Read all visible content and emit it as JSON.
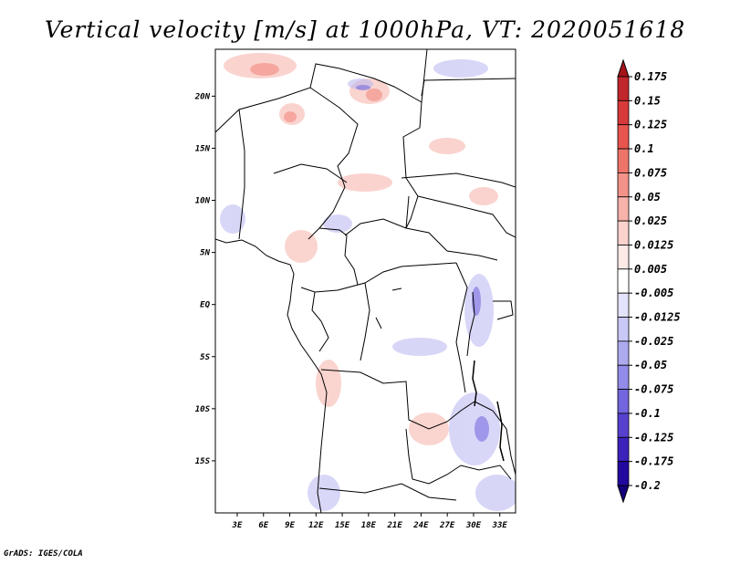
{
  "title": "Vertical velocity [m/s] at 1000hPa, VT: 2020051618",
  "credit": "GrADS: IGES/COLA",
  "map": {
    "lat_labels": [
      "20N",
      "15N",
      "10N",
      "5N",
      "EQ",
      "5S",
      "10S",
      "15S"
    ],
    "lat_values": [
      20,
      15,
      10,
      5,
      0,
      -5,
      -10,
      -15
    ],
    "lon_labels": [
      "3E",
      "6E",
      "9E",
      "12E",
      "15E",
      "18E",
      "21E",
      "24E",
      "27E",
      "30E",
      "33E"
    ],
    "lon_values": [
      3,
      6,
      9,
      12,
      15,
      18,
      21,
      24,
      27,
      30,
      33
    ],
    "lon_range": [
      0.5,
      34.8
    ],
    "lat_range": [
      -20,
      24.5
    ]
  },
  "colorbar": {
    "levels": [
      "0.175",
      "0.15",
      "0.125",
      "0.1",
      "0.075",
      "0.05",
      "0.025",
      "0.0125",
      "0.005",
      "-0.005",
      "-0.0125",
      "-0.025",
      "-0.05",
      "-0.075",
      "-0.1",
      "-0.125",
      "-0.175",
      "-0.2"
    ],
    "colors": [
      "#a5141a",
      "#c0272b",
      "#d73a3a",
      "#e8554f",
      "#ee7469",
      "#f39288",
      "#f7b2aa",
      "#fbd2cc",
      "#fde9e6",
      "#ffffff",
      "#e3e3fb",
      "#c9c8f6",
      "#aeaaf0",
      "#928be9",
      "#7265dd",
      "#5641cf",
      "#3c21bb",
      "#2409a0",
      "#14007a"
    ]
  }
}
